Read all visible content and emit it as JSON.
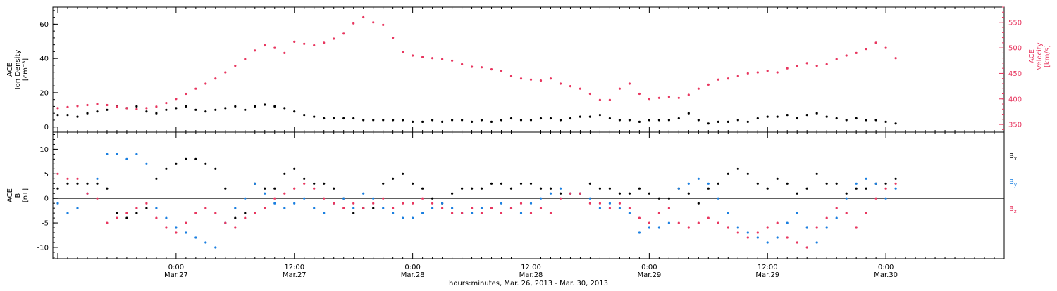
{
  "colors": {
    "black": "#000000",
    "pink": "#e8365f",
    "blue": "#1a7fe0"
  },
  "chart_data": [
    {
      "type": "scatter",
      "panel": "top",
      "ylabel_left": [
        "ACE",
        "Ion Density",
        "[cm⁻³]"
      ],
      "ylabel_right": [
        "ACE",
        "Velocity",
        "[km/s]"
      ],
      "ylim_left": [
        -3,
        70
      ],
      "ylim_right": [
        335,
        580
      ],
      "left_ticks": [
        "0",
        "20",
        "40",
        "60"
      ],
      "right_ticks": [
        "350",
        "400",
        "450",
        "500",
        "550"
      ],
      "x_unit": "hours since 00:00 Mar.26, 2013",
      "series": [
        {
          "color": "black",
          "axis": "left",
          "x": [
            12,
            13,
            14,
            15,
            16,
            17,
            18,
            19,
            20,
            21,
            22,
            23,
            24,
            25,
            26,
            27,
            28,
            29,
            30,
            31,
            32,
            33,
            34,
            35,
            36,
            37,
            38,
            39,
            40,
            41,
            42,
            43,
            44,
            45,
            46,
            47,
            48,
            49,
            50,
            51,
            52,
            53,
            54,
            55,
            56,
            57,
            58,
            59,
            60,
            61,
            62,
            63,
            64,
            65,
            66,
            67,
            68,
            69,
            70,
            71,
            72,
            73,
            74,
            75,
            76,
            77,
            78,
            79,
            80,
            81,
            82,
            83,
            84,
            85,
            86,
            87,
            88,
            89,
            90,
            91,
            92,
            93,
            94,
            95,
            96,
            97
          ],
          "y": [
            7,
            7,
            6,
            8,
            9,
            10,
            12,
            11,
            12,
            9,
            8,
            10,
            11,
            12,
            10,
            9,
            10,
            11,
            12,
            10,
            12,
            13,
            12,
            11,
            9,
            7,
            6,
            5,
            5,
            5,
            5,
            4,
            4,
            4,
            4,
            4,
            3,
            3,
            4,
            3,
            4,
            4,
            3,
            4,
            3,
            4,
            5,
            4,
            4,
            5,
            5,
            4,
            5,
            6,
            6,
            7,
            5,
            4,
            4,
            3,
            4,
            4,
            4,
            5,
            8,
            4,
            2,
            3,
            3,
            4,
            3,
            5,
            6,
            6,
            7,
            5,
            7,
            8,
            6,
            5,
            4,
            5,
            4,
            4,
            3,
            2
          ]
        },
        {
          "color": "pink",
          "axis": "right",
          "x": [
            12,
            13,
            14,
            15,
            16,
            17,
            18,
            19,
            20,
            21,
            22,
            23,
            24,
            25,
            26,
            27,
            28,
            29,
            30,
            31,
            32,
            33,
            34,
            35,
            36,
            37,
            38,
            39,
            40,
            41,
            42,
            43,
            44,
            45,
            46,
            47,
            48,
            49,
            50,
            51,
            52,
            53,
            54,
            55,
            56,
            57,
            58,
            59,
            60,
            61,
            62,
            63,
            64,
            65,
            66,
            67,
            68,
            69,
            70,
            71,
            72,
            73,
            74,
            75,
            76,
            77,
            78,
            79,
            80,
            81,
            82,
            83,
            84,
            85,
            86,
            87,
            88,
            89,
            90,
            91,
            92,
            93,
            94,
            95,
            96,
            97
          ],
          "y": [
            382,
            384,
            386,
            388,
            390,
            388,
            385,
            382,
            380,
            382,
            385,
            392,
            400,
            410,
            420,
            430,
            440,
            452,
            465,
            478,
            495,
            505,
            500,
            490,
            512,
            508,
            505,
            510,
            518,
            528,
            548,
            560,
            550,
            545,
            520,
            492,
            485,
            482,
            480,
            478,
            475,
            468,
            463,
            462,
            458,
            455,
            445,
            440,
            438,
            436,
            440,
            430,
            425,
            420,
            410,
            398,
            398,
            420,
            430,
            410,
            400,
            402,
            404,
            402,
            408,
            420,
            428,
            438,
            440,
            445,
            450,
            452,
            455,
            452,
            460,
            465,
            470,
            465,
            468,
            478,
            485,
            490,
            498,
            510,
            500,
            480
          ]
        }
      ]
    },
    {
      "type": "scatter",
      "panel": "bottom",
      "ylabel_left": [
        "ACE",
        "B",
        "[nT]"
      ],
      "ylim_left": [
        -12.3,
        13.5
      ],
      "left_ticks": [
        "-10",
        "-5",
        "0",
        "5",
        "10"
      ],
      "x_unit": "hours since 00:00 Mar.26, 2013",
      "x_ticks": [
        {
          "time": "0:00",
          "date": "Mar.27"
        },
        {
          "time": "12:00",
          "date": "Mar.27"
        },
        {
          "time": "0:00",
          "date": "Mar.28"
        },
        {
          "time": "12:00",
          "date": "Mar.28"
        },
        {
          "time": "0:00",
          "date": "Mar.29"
        },
        {
          "time": "12:00",
          "date": "Mar.29"
        },
        {
          "time": "0:00",
          "date": "Mar.30"
        }
      ],
      "xlabel": "hours:minutes, Mar. 26, 2013 - Mar. 30, 2013",
      "xlim": [
        11.5,
        108
      ],
      "series": [
        {
          "name": "B",
          "sub": "x",
          "color": "black",
          "x": [
            12,
            13,
            14,
            15,
            16,
            17,
            18,
            19,
            20,
            21,
            22,
            23,
            24,
            25,
            26,
            27,
            28,
            29,
            30,
            31,
            32,
            33,
            34,
            35,
            36,
            37,
            38,
            39,
            40,
            41,
            42,
            43,
            44,
            45,
            46,
            47,
            48,
            49,
            50,
            51,
            52,
            53,
            54,
            55,
            56,
            57,
            58,
            59,
            60,
            61,
            62,
            63,
            64,
            65,
            66,
            67,
            68,
            69,
            70,
            71,
            72,
            73,
            74,
            75,
            76,
            77,
            78,
            79,
            80,
            81,
            82,
            83,
            84,
            85,
            86,
            87,
            88,
            89,
            90,
            91,
            92,
            93,
            94,
            95,
            96,
            97
          ],
          "y": [
            2,
            3,
            3,
            3,
            3,
            2,
            -3,
            -4,
            -3,
            -2,
            4,
            6,
            7,
            8,
            8,
            7,
            6,
            2,
            -4,
            -3,
            3,
            2,
            2,
            5,
            6,
            4,
            3,
            3,
            2,
            0,
            -3,
            -2,
            -2,
            3,
            4,
            5,
            3,
            2,
            0,
            -1,
            1,
            2,
            2,
            2,
            3,
            3,
            2,
            3,
            3,
            2,
            2,
            1,
            1,
            1,
            3,
            2,
            2,
            1,
            1,
            2,
            1,
            0,
            0,
            2,
            1,
            -1,
            2,
            3,
            5,
            6,
            5,
            3,
            2,
            4,
            3,
            1,
            2,
            5,
            3,
            3,
            1,
            2,
            2,
            3,
            3,
            4
          ]
        },
        {
          "name": "B",
          "sub": "y",
          "color": "blue",
          "x": [
            12,
            13,
            14,
            15,
            16,
            17,
            18,
            19,
            20,
            21,
            22,
            23,
            24,
            25,
            26,
            27,
            28,
            29,
            30,
            31,
            32,
            33,
            34,
            35,
            36,
            37,
            38,
            39,
            40,
            41,
            42,
            43,
            44,
            45,
            46,
            47,
            48,
            49,
            50,
            51,
            52,
            53,
            54,
            55,
            56,
            57,
            58,
            59,
            60,
            61,
            62,
            63,
            64,
            65,
            66,
            67,
            68,
            69,
            70,
            71,
            72,
            73,
            74,
            75,
            76,
            77,
            78,
            79,
            80,
            81,
            82,
            83,
            84,
            85,
            86,
            87,
            88,
            89,
            90,
            91,
            92,
            93,
            94,
            95,
            96,
            97
          ],
          "y": [
            -1,
            -3,
            -2,
            1,
            4,
            9,
            9,
            8,
            9,
            7,
            -2,
            -4,
            -6,
            -7,
            -8,
            -9,
            -10,
            -5,
            -2,
            0,
            3,
            1,
            -1,
            -2,
            -1,
            0,
            -2,
            -3,
            -1,
            0,
            -2,
            1,
            0,
            -2,
            -3,
            -4,
            -4,
            -3,
            -2,
            -1,
            -2,
            -3,
            -3,
            -2,
            -2,
            -1,
            -2,
            -3,
            -1,
            0,
            1,
            2,
            1,
            1,
            0,
            -2,
            -1,
            -2,
            -3,
            -7,
            -6,
            -6,
            -5,
            2,
            3,
            4,
            3,
            0,
            -3,
            -6,
            -7,
            -8,
            -9,
            -8,
            -5,
            -3,
            -6,
            -9,
            -6,
            -4,
            0,
            3,
            4,
            3,
            0,
            2
          ]
        },
        {
          "name": "B",
          "sub": "z",
          "color": "pink",
          "x": [
            12,
            13,
            14,
            15,
            16,
            17,
            18,
            19,
            20,
            21,
            22,
            23,
            24,
            25,
            26,
            27,
            28,
            29,
            30,
            31,
            32,
            33,
            34,
            35,
            36,
            37,
            38,
            39,
            40,
            41,
            42,
            43,
            44,
            45,
            46,
            47,
            48,
            49,
            50,
            51,
            52,
            53,
            54,
            55,
            56,
            57,
            58,
            59,
            60,
            61,
            62,
            63,
            64,
            65,
            66,
            67,
            68,
            69,
            70,
            71,
            72,
            73,
            74,
            75,
            76,
            77,
            78,
            79,
            80,
            81,
            82,
            83,
            84,
            85,
            86,
            87,
            88,
            89,
            90,
            91,
            92,
            93,
            94,
            95,
            96,
            97
          ],
          "y": [
            5,
            4,
            4,
            1,
            0,
            -5,
            -4,
            -3,
            -2,
            -1,
            -4,
            -6,
            -7,
            -5,
            -3,
            -2,
            -3,
            -5,
            -6,
            -4,
            -3,
            -2,
            0,
            1,
            2,
            3,
            2,
            0,
            -1,
            -2,
            -1,
            -2,
            -1,
            0,
            -2,
            -1,
            -1,
            0,
            -1,
            -2,
            -3,
            -3,
            -2,
            -3,
            -2,
            -3,
            -2,
            -1,
            -3,
            -2,
            -3,
            0,
            1,
            1,
            -1,
            -1,
            -2,
            -1,
            -2,
            -4,
            -5,
            -3,
            -2,
            -5,
            -6,
            -5,
            -4,
            -5,
            -6,
            -7,
            -8,
            -7,
            -6,
            -5,
            -8,
            -9,
            -10,
            -6,
            -4,
            -2,
            -3,
            -6,
            -3,
            0,
            2,
            3
          ]
        }
      ]
    }
  ]
}
